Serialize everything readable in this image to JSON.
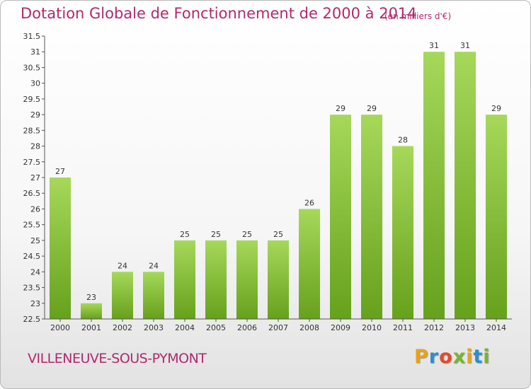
{
  "header": {
    "title": "Dotation Globale de Fonctionnement de 2000 à 2014",
    "subtitle": "(en milliers d'€)"
  },
  "footer": {
    "commune": "VILLENEUVE-SOUS-PYMONT",
    "brand_letters": [
      "P",
      "r",
      "o",
      "x",
      "i",
      "t",
      "i"
    ],
    "brand_colors": [
      "#e8a21b",
      "#2a8fd0",
      "#e34b2a",
      "#77b52c",
      "#e8a21b",
      "#2a8fd0",
      "#77b52c"
    ]
  },
  "chart_data": {
    "type": "bar",
    "categories": [
      "2000",
      "2001",
      "2002",
      "2003",
      "2004",
      "2005",
      "2006",
      "2007",
      "2008",
      "2009",
      "2010",
      "2011",
      "2012",
      "2013",
      "2014"
    ],
    "values": [
      27,
      23,
      24,
      24,
      25,
      25,
      25,
      25,
      26,
      29,
      29,
      28,
      31,
      31,
      29
    ],
    "ylim": [
      22.5,
      31.5
    ],
    "yticks": [
      "22.5",
      "23",
      "23.5",
      "24",
      "24.5",
      "25",
      "25.5",
      "26",
      "26.5",
      "27",
      "27.5",
      "28",
      "28.5",
      "29",
      "29.5",
      "30",
      "30.5",
      "31",
      "31.5"
    ],
    "grid": false,
    "bar_color_top": "#a6d85a",
    "bar_color_bottom": "#66a11c"
  }
}
